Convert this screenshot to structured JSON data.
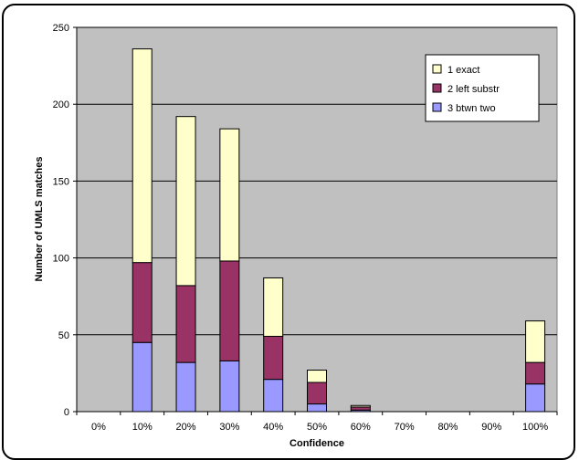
{
  "chart_data": {
    "type": "bar",
    "stacked": true,
    "categories": [
      "0%",
      "10%",
      "20%",
      "30%",
      "40%",
      "50%",
      "60%",
      "70%",
      "80%",
      "90%",
      "100%"
    ],
    "series": [
      {
        "name": "3 btwn two",
        "color": "#9999ff",
        "values": [
          0,
          45,
          32,
          33,
          21,
          5,
          1,
          0,
          0,
          0,
          18
        ]
      },
      {
        "name": "2 left substr",
        "color": "#993366",
        "values": [
          0,
          52,
          50,
          65,
          28,
          14,
          2,
          0,
          0,
          0,
          14
        ]
      },
      {
        "name": "1 exact",
        "color": "#ffffcc",
        "values": [
          0,
          139,
          110,
          86,
          38,
          8,
          1,
          0,
          0,
          0,
          27
        ]
      }
    ],
    "legend_order": [
      "1 exact",
      "2 left substr",
      "3 btwn two"
    ],
    "xlabel": "Confidence",
    "ylabel": "Number of UMLS matches",
    "ylim": [
      0,
      250
    ],
    "yticks": [
      0,
      50,
      100,
      150,
      200,
      250
    ],
    "grid": true,
    "legend_position": "top-right",
    "plot_background": "#c0c0c0"
  }
}
